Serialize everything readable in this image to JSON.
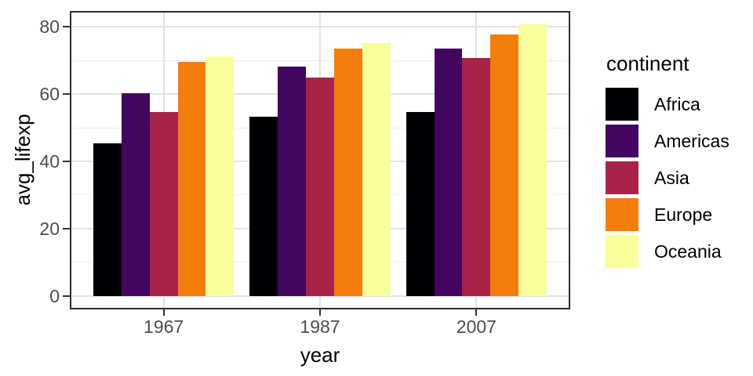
{
  "chart_data": {
    "type": "bar",
    "title": "",
    "xlabel": "year",
    "ylabel": "avg_lifexp",
    "legend_title": "continent",
    "legend_position": "right",
    "grid": true,
    "categories": [
      "1967",
      "1987",
      "2007"
    ],
    "series": [
      {
        "name": "Africa",
        "color": "#000004",
        "values": [
          45.3,
          53.3,
          54.8
        ]
      },
      {
        "name": "Americas",
        "color": "#430560",
        "values": [
          60.4,
          68.1,
          73.6
        ]
      },
      {
        "name": "Asia",
        "color": "#a92347",
        "values": [
          54.7,
          64.9,
          70.7
        ]
      },
      {
        "name": "Europe",
        "color": "#f57d0b",
        "values": [
          69.7,
          73.6,
          77.7
        ]
      },
      {
        "name": "Oceania",
        "color": "#fbfd9d",
        "values": [
          71.3,
          75.3,
          80.7
        ]
      }
    ],
    "y_ticks": [
      0,
      20,
      40,
      60,
      80
    ],
    "y_minor_ticks": [
      10,
      30,
      50,
      70
    ],
    "ylim": [
      -4.04,
      84.76
    ]
  }
}
